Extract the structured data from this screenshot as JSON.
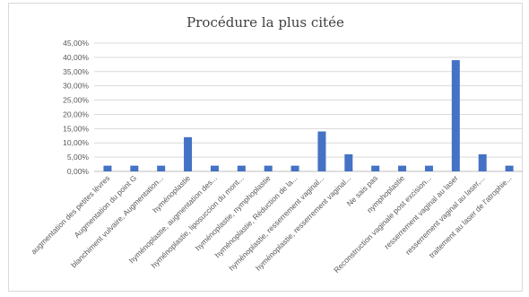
{
  "chart_data": {
    "type": "bar",
    "title": "Procédure la plus citée",
    "xlabel": "",
    "ylabel": "",
    "ylim": [
      0,
      45
    ],
    "yticks": [
      "0,00%",
      "5,00%",
      "10,00%",
      "15,00%",
      "20,00%",
      "25,00%",
      "30,00%",
      "35,00%",
      "40,00%",
      "45,00%"
    ],
    "grid": true,
    "legend": "none",
    "bar_color": "#4472c4",
    "unit": "%",
    "categories": [
      "augmentation des petites lèvres",
      "Augmentation du point G",
      "blanchiment vulvaire, Augmentation...",
      "hyménoplastie",
      "hyménoplastie, augmentation des...",
      "hyménoplastie, liposuccion du mont...",
      "hyménoplastie, nymphoplastie",
      "hyménoplastie, Réduction de la...",
      "hyménoplastie, resserrement vaginal...",
      "hyménoplastie, resserrement vaginal...",
      "Ne sais pas",
      "nymphoplastie",
      "Reconstruction vaginale post excision...",
      "resserrement vaginal au laser",
      "resserrement vaginal au laser,...",
      "traitement au laser de l'atrophie..."
    ],
    "values": [
      2,
      2,
      2,
      12,
      2,
      2,
      2,
      2,
      14,
      6,
      2,
      2,
      2,
      39,
      6,
      2
    ]
  }
}
